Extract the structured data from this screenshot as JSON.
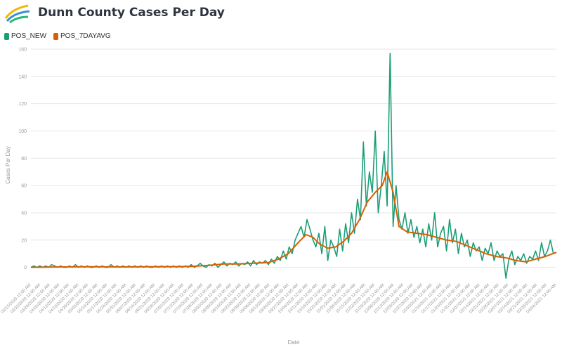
{
  "header": {
    "title": "Dunn County Cases Per Day",
    "logo_icon": "county-logo-icon"
  },
  "legend": [
    {
      "name": "POS_NEW",
      "color": "#1b9e77"
    },
    {
      "name": "POS_7DAYAVG",
      "color": "#d95f02"
    }
  ],
  "chart_data": {
    "type": "line",
    "title": "Dunn County Cases Per Day",
    "xlabel": "Date",
    "ylabel": "Cases Per Day",
    "ylim": [
      -10,
      160
    ],
    "yticks": [
      0,
      20,
      40,
      60,
      80,
      100,
      120,
      140,
      160
    ],
    "grid": true,
    "legend_position": "top-left",
    "x_tick_labels": [
      "03/15/2020 12:00 AM",
      "03/22/2020 12:00 AM",
      "03/29/2020 12:00 AM",
      "04/05/2020 12:00 AM",
      "04/12/2020 12:00 AM",
      "04/19/2020 12:00 AM",
      "04/26/2020 12:00 AM",
      "05/03/2020 12:00 AM",
      "05/10/2020 12:00 AM",
      "05/17/2020 12:00 AM",
      "05/24/2020 12:00 AM",
      "05/31/2020 12:00 AM",
      "06/07/2020 12:00 AM",
      "06/14/2020 12:00 AM",
      "06/21/2020 12:00 AM",
      "06/28/2020 12:00 AM",
      "07/05/2020 12:00 AM",
      "07/12/2020 12:00 AM",
      "07/19/2020 12:00 AM",
      "07/26/2020 12:00 AM",
      "08/02/2020 12:00 AM",
      "08/09/2020 12:00 AM",
      "08/16/2020 12:00 AM",
      "08/23/2020 12:00 AM",
      "08/30/2020 12:00 AM",
      "09/06/2020 12:00 AM",
      "09/13/2020 12:00 AM",
      "09/20/2020 12:00 AM",
      "09/27/2020 12:00 AM",
      "10/04/2020 12:00 AM",
      "10/11/2020 12:00 AM",
      "10/18/2020 12:00 AM",
      "10/25/2020 12:00 AM",
      "11/01/2020 12:00 AM",
      "11/08/2020 12:00 AM",
      "11/15/2020 12:00 AM",
      "11/22/2020 12:00 AM",
      "11/29/2020 12:00 AM",
      "12/06/2020 12:00 AM",
      "12/13/2020 12:00 AM",
      "12/20/2020 12:00 AM",
      "12/27/2020 12:00 AM",
      "01/03/2021 12:00 AM",
      "01/10/2021 12:00 AM",
      "01/17/2021 12:00 AM",
      "01/24/2021 12:00 AM",
      "01/31/2021 12:00 AM",
      "02/07/2021 12:00 AM",
      "02/14/2021 12:00 AM",
      "02/21/2021 12:00 AM",
      "02/28/2021 12:00 AM",
      "03/07/2021 12:00 AM",
      "03/14/2021 12:00 AM",
      "03/21/2021 12:00 AM",
      "03/28/2021 12:00 AM",
      "04/04/2021 12:00 AM"
    ],
    "series": [
      {
        "name": "POS_NEW",
        "color": "#1b9e77",
        "points": [
          [
            0,
            0
          ],
          [
            3,
            1
          ],
          [
            6,
            0
          ],
          [
            9,
            1
          ],
          [
            12,
            0
          ],
          [
            15,
            1
          ],
          [
            18,
            0
          ],
          [
            21,
            2
          ],
          [
            24,
            1
          ],
          [
            27,
            0
          ],
          [
            30,
            1
          ],
          [
            33,
            0
          ],
          [
            36,
            0
          ],
          [
            39,
            1
          ],
          [
            42,
            0
          ],
          [
            45,
            2
          ],
          [
            48,
            0
          ],
          [
            51,
            1
          ],
          [
            54,
            0
          ],
          [
            57,
            1
          ],
          [
            60,
            0
          ],
          [
            63,
            0
          ],
          [
            66,
            1
          ],
          [
            69,
            0
          ],
          [
            72,
            1
          ],
          [
            75,
            0
          ],
          [
            78,
            0
          ],
          [
            81,
            2
          ],
          [
            84,
            0
          ],
          [
            87,
            1
          ],
          [
            90,
            0
          ],
          [
            93,
            1
          ],
          [
            96,
            0
          ],
          [
            99,
            1
          ],
          [
            102,
            0
          ],
          [
            105,
            1
          ],
          [
            108,
            0
          ],
          [
            111,
            1
          ],
          [
            114,
            0
          ],
          [
            117,
            1
          ],
          [
            120,
            0
          ],
          [
            123,
            0
          ],
          [
            126,
            1
          ],
          [
            129,
            0
          ],
          [
            132,
            1
          ],
          [
            135,
            0
          ],
          [
            138,
            1
          ],
          [
            141,
            0
          ],
          [
            144,
            1
          ],
          [
            147,
            0
          ],
          [
            150,
            1
          ],
          [
            153,
            0
          ],
          [
            156,
            1
          ],
          [
            159,
            0
          ],
          [
            162,
            2
          ],
          [
            165,
            0
          ],
          [
            168,
            1
          ],
          [
            171,
            3
          ],
          [
            174,
            1
          ],
          [
            177,
            0
          ],
          [
            180,
            2
          ],
          [
            183,
            1
          ],
          [
            186,
            3
          ],
          [
            189,
            0
          ],
          [
            192,
            2
          ],
          [
            195,
            4
          ],
          [
            198,
            1
          ],
          [
            201,
            3
          ],
          [
            204,
            2
          ],
          [
            207,
            4
          ],
          [
            210,
            1
          ],
          [
            213,
            3
          ],
          [
            216,
            2
          ],
          [
            219,
            4
          ],
          [
            222,
            1
          ],
          [
            225,
            5
          ],
          [
            228,
            2
          ],
          [
            231,
            4
          ],
          [
            234,
            3
          ],
          [
            237,
            5
          ],
          [
            240,
            2
          ],
          [
            243,
            6
          ],
          [
            246,
            3
          ],
          [
            249,
            8
          ],
          [
            252,
            5
          ],
          [
            255,
            12
          ],
          [
            258,
            6
          ],
          [
            261,
            15
          ],
          [
            264,
            10
          ],
          [
            267,
            20
          ],
          [
            270,
            25
          ],
          [
            273,
            30
          ],
          [
            276,
            22
          ],
          [
            279,
            35
          ],
          [
            282,
            28
          ],
          [
            285,
            20
          ],
          [
            288,
            15
          ],
          [
            291,
            25
          ],
          [
            294,
            10
          ],
          [
            297,
            30
          ],
          [
            300,
            5
          ],
          [
            303,
            20
          ],
          [
            306,
            15
          ],
          [
            309,
            8
          ],
          [
            312,
            28
          ],
          [
            315,
            12
          ],
          [
            318,
            32
          ],
          [
            321,
            18
          ],
          [
            324,
            40
          ],
          [
            327,
            25
          ],
          [
            330,
            50
          ],
          [
            333,
            35
          ],
          [
            336,
            92
          ],
          [
            339,
            45
          ],
          [
            342,
            70
          ],
          [
            345,
            55
          ],
          [
            348,
            100
          ],
          [
            351,
            40
          ],
          [
            354,
            60
          ],
          [
            357,
            85
          ],
          [
            360,
            45
          ],
          [
            363,
            157
          ],
          [
            366,
            30
          ],
          [
            369,
            60
          ],
          [
            372,
            35
          ],
          [
            375,
            28
          ],
          [
            378,
            40
          ],
          [
            381,
            25
          ],
          [
            384,
            35
          ],
          [
            387,
            22
          ],
          [
            390,
            30
          ],
          [
            393,
            18
          ],
          [
            396,
            28
          ],
          [
            399,
            15
          ],
          [
            402,
            32
          ],
          [
            405,
            20
          ],
          [
            408,
            40
          ],
          [
            411,
            15
          ],
          [
            414,
            25
          ],
          [
            417,
            30
          ],
          [
            420,
            12
          ],
          [
            423,
            35
          ],
          [
            426,
            18
          ],
          [
            429,
            28
          ],
          [
            432,
            10
          ],
          [
            435,
            25
          ],
          [
            438,
            15
          ],
          [
            441,
            20
          ],
          [
            444,
            8
          ],
          [
            447,
            18
          ],
          [
            450,
            12
          ],
          [
            453,
            15
          ],
          [
            456,
            5
          ],
          [
            459,
            14
          ],
          [
            462,
            10
          ],
          [
            465,
            18
          ],
          [
            468,
            5
          ],
          [
            471,
            12
          ],
          [
            474,
            8
          ],
          [
            477,
            10
          ],
          [
            480,
            -8
          ],
          [
            483,
            6
          ],
          [
            486,
            12
          ],
          [
            489,
            2
          ],
          [
            492,
            8
          ],
          [
            495,
            5
          ],
          [
            498,
            10
          ],
          [
            501,
            3
          ],
          [
            504,
            8
          ],
          [
            507,
            6
          ],
          [
            510,
            12
          ],
          [
            513,
            5
          ],
          [
            516,
            18
          ],
          [
            519,
            8
          ],
          [
            522,
            12
          ],
          [
            525,
            20
          ],
          [
            528,
            10
          ],
          [
            531,
            11
          ]
        ]
      },
      {
        "name": "POS_7DAYAVG",
        "color": "#d95f02",
        "points": [
          [
            0,
            0
          ],
          [
            30,
            0.3
          ],
          [
            60,
            0.4
          ],
          [
            90,
            0.3
          ],
          [
            120,
            0.4
          ],
          [
            150,
            0.5
          ],
          [
            165,
            0.8
          ],
          [
            180,
            1.5
          ],
          [
            195,
            2.5
          ],
          [
            210,
            2.5
          ],
          [
            225,
            3
          ],
          [
            240,
            3.5
          ],
          [
            250,
            6
          ],
          [
            260,
            10
          ],
          [
            270,
            18
          ],
          [
            278,
            24
          ],
          [
            285,
            22
          ],
          [
            292,
            17
          ],
          [
            300,
            14
          ],
          [
            308,
            15
          ],
          [
            316,
            19
          ],
          [
            324,
            25
          ],
          [
            332,
            35
          ],
          [
            340,
            48
          ],
          [
            348,
            55
          ],
          [
            355,
            60
          ],
          [
            360,
            70
          ],
          [
            366,
            55
          ],
          [
            372,
            30
          ],
          [
            380,
            26
          ],
          [
            390,
            25
          ],
          [
            400,
            24
          ],
          [
            410,
            22
          ],
          [
            420,
            20
          ],
          [
            430,
            19
          ],
          [
            440,
            16
          ],
          [
            450,
            13
          ],
          [
            460,
            10
          ],
          [
            470,
            8
          ],
          [
            480,
            7
          ],
          [
            490,
            5
          ],
          [
            500,
            4
          ],
          [
            510,
            6
          ],
          [
            520,
            8
          ],
          [
            531,
            11
          ]
        ]
      }
    ]
  }
}
